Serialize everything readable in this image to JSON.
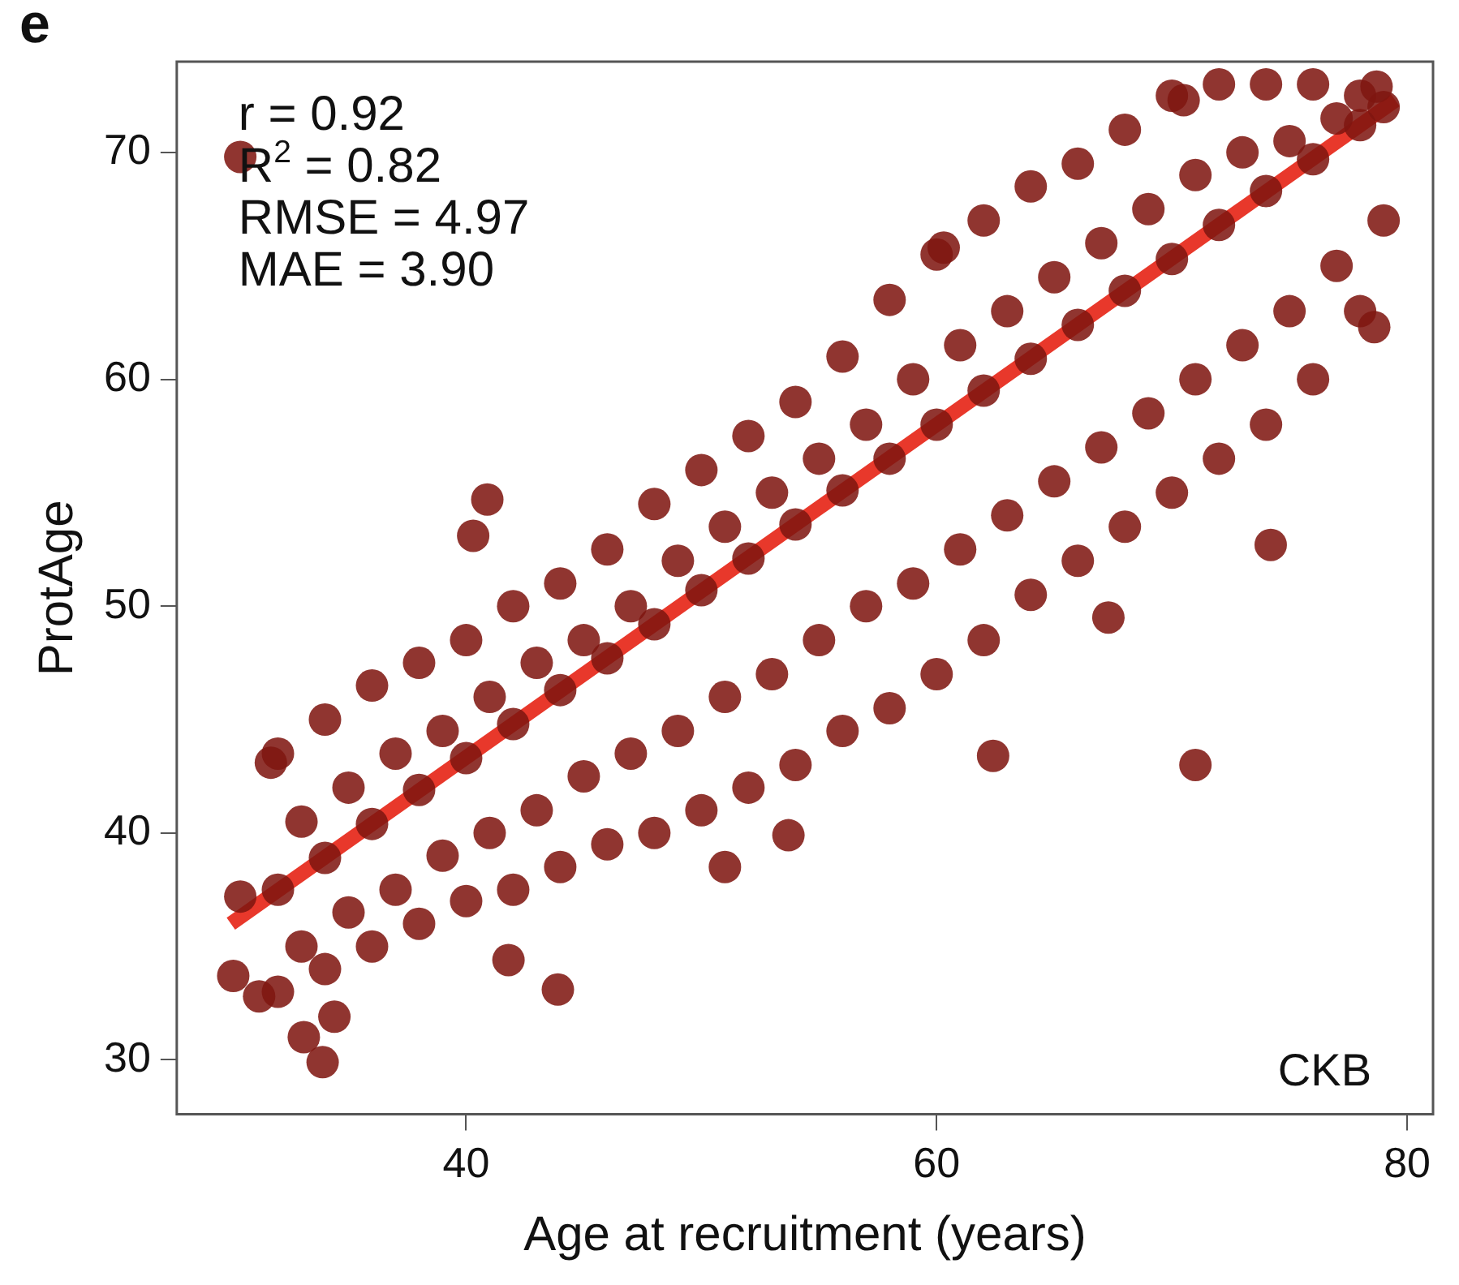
{
  "chart_data": {
    "type": "scatter",
    "xlabel": "Age at recruitment (years)",
    "ylabel": "ProtAge",
    "annotations": [
      "e",
      "r = 0.92",
      "R$^{2}$ = 0.82",
      "RMSE = 4.97",
      "MAE = 3.90",
      "CKB"
    ],
    "xlim": [
      27.7,
      81.1
    ],
    "ylim": [
      27.6,
      74
    ],
    "xticks": [
      40,
      60,
      80
    ],
    "yticks": [
      30,
      40,
      50,
      60,
      70
    ],
    "grid": false,
    "legend": false,
    "marker": "circle",
    "series": [
      {
        "color": "#7f1610",
        "x": [
          32,
          34,
          36,
          38,
          40,
          42,
          44,
          46,
          48,
          50,
          52,
          54,
          56,
          58,
          60,
          62,
          64,
          66,
          68,
          70,
          72,
          74,
          76,
          78,
          32,
          34,
          36,
          38,
          40,
          42,
          44,
          46,
          48,
          50,
          52,
          54,
          56,
          58,
          60,
          62,
          64,
          66,
          68,
          70,
          72,
          74,
          76,
          78,
          32,
          34,
          36,
          38,
          40,
          42,
          44,
          46,
          48,
          50,
          52,
          54,
          56,
          58,
          60,
          62,
          64,
          66,
          68,
          70,
          72,
          74,
          76,
          78,
          33,
          35,
          37,
          39,
          41,
          43,
          45,
          47,
          49,
          51,
          53,
          55,
          57,
          59,
          61,
          63,
          65,
          67,
          69,
          71,
          73,
          75,
          77,
          79,
          33,
          35,
          37,
          39,
          41,
          43,
          45,
          47,
          49,
          51,
          53,
          55,
          57,
          59,
          61,
          63,
          65,
          67,
          69,
          71,
          73,
          75,
          77,
          79,
          30.4,
          31.7,
          30.4,
          30.1,
          31.2,
          33.1,
          33.9,
          34.4,
          40.9,
          40.3,
          43.9,
          41.8,
          51.0,
          53.7,
          62.4,
          71.0,
          67.3,
          74.2,
          78.6,
          60.3,
          78.7,
          70.5
        ],
        "values": [
          43.5,
          45,
          46.5,
          47.5,
          48.5,
          50,
          51,
          52.5,
          54.5,
          56,
          57.5,
          59,
          61,
          63.5,
          65.5,
          67,
          68.5,
          69.5,
          71,
          72.5,
          73,
          73,
          73,
          72.5,
          33,
          34,
          35,
          36,
          37,
          37.5,
          38.5,
          39.5,
          40,
          41,
          42,
          43,
          44.5,
          45.5,
          47,
          48.5,
          50.5,
          52,
          53.5,
          55,
          56.5,
          58,
          60,
          63,
          37.5,
          38.9,
          40.4,
          41.9,
          43.3,
          44.8,
          46.3,
          47.7,
          49.2,
          50.7,
          52.1,
          53.6,
          55.1,
          56.5,
          58.0,
          59.5,
          60.9,
          62.4,
          63.9,
          65.3,
          66.8,
          68.3,
          69.7,
          71.2,
          40.5,
          42,
          43.5,
          44.5,
          46,
          47.5,
          48.5,
          50,
          52,
          53.5,
          55,
          56.5,
          58,
          60,
          61.5,
          63,
          64.5,
          66,
          67.5,
          69,
          70,
          70.5,
          71.5,
          72,
          35,
          36.5,
          37.5,
          39,
          40,
          41,
          42.5,
          43.5,
          44.5,
          46,
          47,
          48.5,
          50,
          51,
          52.5,
          54,
          55.5,
          57,
          58.5,
          60,
          61.5,
          63,
          65,
          67,
          69.8,
          43.1,
          37.2,
          33.7,
          32.8,
          31.0,
          29.9,
          31.9,
          54.7,
          53.1,
          33.1,
          34.4,
          38.5,
          39.9,
          43.4,
          43.0,
          49.5,
          52.7,
          62.3,
          65.8,
          72.9,
          72.3
        ]
      },
      {
        "type": "line",
        "color": "#e8382b",
        "marker": "none",
        "line_style": "solid",
        "x": [
          30,
          79.5
        ],
        "values": [
          36,
          72.3
        ]
      }
    ]
  }
}
